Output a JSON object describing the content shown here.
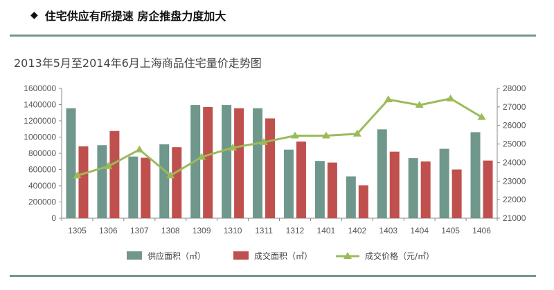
{
  "header": {
    "bullet_icon": "diamond-bullet-icon",
    "title": "住宅供应有所提速  房企推盘力度加大"
  },
  "chart_data": {
    "type": "bar",
    "title": "2013年5月至2014年6月上海商品住宅量价走势图",
    "categories": [
      "1305",
      "1306",
      "1307",
      "1308",
      "1309",
      "1310",
      "1311",
      "1312",
      "1401",
      "1402",
      "1403",
      "1404",
      "1405",
      "1406"
    ],
    "series": [
      {
        "name": "供应面积（㎡）",
        "type": "bar",
        "axis": "left",
        "color": "#6f978c",
        "values": [
          1355000,
          900000,
          760000,
          910000,
          1395000,
          1395000,
          1355000,
          845000,
          705000,
          515000,
          1095000,
          740000,
          855000,
          1060000
        ]
      },
      {
        "name": "成交面积（㎡）",
        "type": "bar",
        "axis": "left",
        "color": "#c0504d",
        "values": [
          885000,
          1075000,
          745000,
          875000,
          1370000,
          1355000,
          1230000,
          945000,
          685000,
          405000,
          820000,
          700000,
          600000,
          710000
        ]
      },
      {
        "name": "成交价格（元/㎡）",
        "type": "line",
        "axis": "right",
        "color": "#9bbb59",
        "marker": "triangle",
        "values": [
          23300,
          23800,
          24700,
          23300,
          24300,
          24800,
          25100,
          25450,
          25450,
          25550,
          27400,
          27100,
          27450,
          26450
        ]
      }
    ],
    "left_axis": {
      "min": 0,
      "max": 1600000,
      "step": 200000,
      "ticks": [
        "0",
        "200000",
        "400000",
        "600000",
        "800000",
        "1000000",
        "1200000",
        "1400000",
        "1600000"
      ]
    },
    "right_axis": {
      "min": 21000,
      "max": 28000,
      "step": 1000,
      "ticks": [
        "21000",
        "22000",
        "23000",
        "24000",
        "25000",
        "26000",
        "27000",
        "28000"
      ]
    },
    "grid": false,
    "legend_position": "bottom"
  }
}
